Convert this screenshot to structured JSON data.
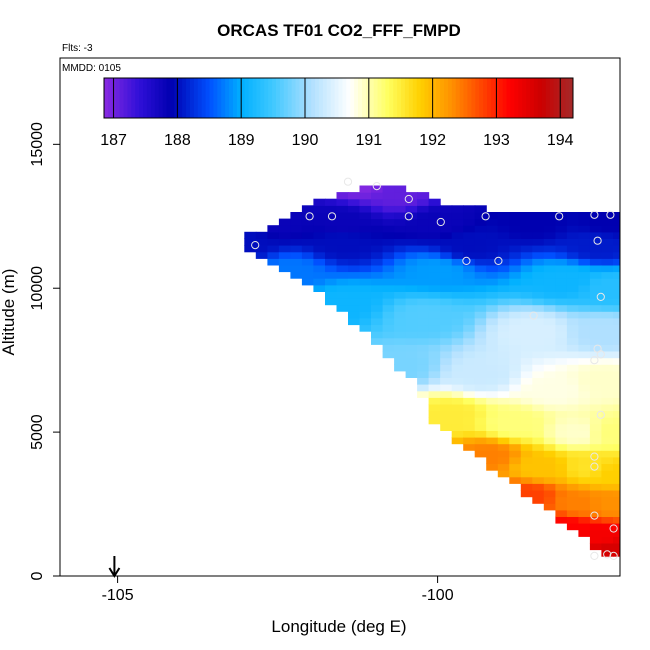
{
  "chart_data": {
    "type": "heatmap",
    "title": "ORCAS TF01 CO2_FFF_FMPD",
    "subtitle": "Flts: -3",
    "annotation": "MMDD: 0105",
    "xlabel": "Longitude (deg E)",
    "ylabel": "Altitude (m)",
    "xlim": [
      -105.9,
      -97.15
    ],
    "ylim": [
      0,
      18000
    ],
    "xticks": [
      {
        "value": -105,
        "label": "-105"
      },
      {
        "value": -100,
        "label": "-100"
      }
    ],
    "yticks": [
      {
        "value": 0,
        "label": "0"
      },
      {
        "value": 5000,
        "label": "5000"
      },
      {
        "value": 10000,
        "label": "10000"
      },
      {
        "value": 15000,
        "label": "15000"
      }
    ],
    "colorbar": {
      "min": 186.85,
      "max": 194.2,
      "ticks": [
        {
          "value": 187,
          "label": "187"
        },
        {
          "value": 188,
          "label": "188"
        },
        {
          "value": 189,
          "label": "189"
        },
        {
          "value": 190,
          "label": "190"
        },
        {
          "value": 191,
          "label": "191"
        },
        {
          "value": 192,
          "label": "192"
        },
        {
          "value": 193,
          "label": "193"
        },
        {
          "value": 194,
          "label": "194"
        }
      ],
      "stops": [
        {
          "value": 186.85,
          "color": "#8a2be2"
        },
        {
          "value": 187.4,
          "color": "#3010d8"
        },
        {
          "value": 187.9,
          "color": "#0000b0"
        },
        {
          "value": 188.5,
          "color": "#0050ff"
        },
        {
          "value": 189.0,
          "color": "#00b0ff"
        },
        {
          "value": 189.5,
          "color": "#40c8ff"
        },
        {
          "value": 190.1,
          "color": "#b0e0ff"
        },
        {
          "value": 190.7,
          "color": "#ffffff"
        },
        {
          "value": 191.3,
          "color": "#ffff60"
        },
        {
          "value": 191.8,
          "color": "#ffd000"
        },
        {
          "value": 192.3,
          "color": "#ff9000"
        },
        {
          "value": 192.8,
          "color": "#ff4000"
        },
        {
          "value": 193.2,
          "color": "#ff0000"
        },
        {
          "value": 193.7,
          "color": "#cc0000"
        },
        {
          "value": 194.2,
          "color": "#a52a2a"
        }
      ]
    },
    "flight_marker": {
      "longitude": -105.05,
      "symbol": "down-arrow"
    },
    "field_boundary": {
      "top_altitude": 12700,
      "columns": [
        {
          "lon": -103.0,
          "bottom": 11500,
          "top": 11900
        },
        {
          "lon": -102.7,
          "bottom": 10900,
          "top": 12100
        },
        {
          "lon": -102.2,
          "bottom": 10400,
          "top": 12600
        },
        {
          "lon": -101.6,
          "bottom": 9400,
          "top": 13300
        },
        {
          "lon": -101.0,
          "bottom": 8200,
          "top": 13600
        },
        {
          "lon": -100.4,
          "bottom": 6800,
          "top": 13400
        },
        {
          "lon": -100.0,
          "bottom": 5200,
          "top": 13000
        },
        {
          "lon": -99.5,
          "bottom": 4300,
          "top": 12800
        },
        {
          "lon": -99.0,
          "bottom": 3500,
          "top": 12700
        },
        {
          "lon": -98.5,
          "bottom": 2600,
          "top": 12700
        },
        {
          "lon": -98.0,
          "bottom": 1800,
          "top": 12700
        },
        {
          "lon": -97.5,
          "bottom": 900,
          "top": 12700
        },
        {
          "lon": -97.15,
          "bottom": 600,
          "top": 12700
        }
      ]
    },
    "field_anchors": [
      {
        "lon": -101.2,
        "alt": 13700,
        "v": 186.9
      },
      {
        "lon": -100.6,
        "alt": 13300,
        "v": 187.1
      },
      {
        "lon": -102.5,
        "alt": 12300,
        "v": 187.8
      },
      {
        "lon": -101.5,
        "alt": 12300,
        "v": 187.8
      },
      {
        "lon": -100.0,
        "alt": 12300,
        "v": 187.8
      },
      {
        "lon": -98.5,
        "alt": 12300,
        "v": 187.9
      },
      {
        "lon": -97.3,
        "alt": 12300,
        "v": 187.9
      },
      {
        "lon": -103.0,
        "alt": 11600,
        "v": 188.0
      },
      {
        "lon": -101.5,
        "alt": 11600,
        "v": 188.0
      },
      {
        "lon": -99.5,
        "alt": 11500,
        "v": 188.0
      },
      {
        "lon": -97.5,
        "alt": 11500,
        "v": 188.1
      },
      {
        "lon": -102.3,
        "alt": 10600,
        "v": 188.7
      },
      {
        "lon": -100.0,
        "alt": 10600,
        "v": 188.9
      },
      {
        "lon": -98.0,
        "alt": 10300,
        "v": 189.1
      },
      {
        "lon": -97.3,
        "alt": 10000,
        "v": 189.3
      },
      {
        "lon": -101.5,
        "alt": 9500,
        "v": 189.1
      },
      {
        "lon": -100.2,
        "alt": 9000,
        "v": 189.6
      },
      {
        "lon": -98.5,
        "alt": 8500,
        "v": 190.4
      },
      {
        "lon": -97.4,
        "alt": 8500,
        "v": 190.1
      },
      {
        "lon": -100.6,
        "alt": 7300,
        "v": 189.8
      },
      {
        "lon": -99.3,
        "alt": 7000,
        "v": 190.3
      },
      {
        "lon": -98.2,
        "alt": 6500,
        "v": 190.8
      },
      {
        "lon": -97.4,
        "alt": 6800,
        "v": 190.9
      },
      {
        "lon": -99.8,
        "alt": 5600,
        "v": 191.5
      },
      {
        "lon": -98.8,
        "alt": 5300,
        "v": 191.2
      },
      {
        "lon": -97.8,
        "alt": 5000,
        "v": 190.9
      },
      {
        "lon": -97.3,
        "alt": 5000,
        "v": 191.2
      },
      {
        "lon": -99.2,
        "alt": 4200,
        "v": 192.4
      },
      {
        "lon": -98.4,
        "alt": 3800,
        "v": 191.9
      },
      {
        "lon": -97.6,
        "alt": 3800,
        "v": 191.6
      },
      {
        "lon": -97.3,
        "alt": 3600,
        "v": 191.8
      },
      {
        "lon": -98.6,
        "alt": 2800,
        "v": 192.8
      },
      {
        "lon": -97.8,
        "alt": 2500,
        "v": 192.4
      },
      {
        "lon": -97.3,
        "alt": 2500,
        "v": 192.3
      },
      {
        "lon": -98.0,
        "alt": 1700,
        "v": 193.2
      },
      {
        "lon": -97.5,
        "alt": 1400,
        "v": 193.3
      },
      {
        "lon": -97.3,
        "alt": 900,
        "v": 193.6
      }
    ],
    "observations": [
      {
        "lon": -101.4,
        "alt": 13700
      },
      {
        "lon": -100.95,
        "alt": 13550
      },
      {
        "lon": -100.45,
        "alt": 13100
      },
      {
        "lon": -102.0,
        "alt": 12500
      },
      {
        "lon": -101.65,
        "alt": 12500
      },
      {
        "lon": -100.45,
        "alt": 12500
      },
      {
        "lon": -99.95,
        "alt": 12300
      },
      {
        "lon": -99.25,
        "alt": 12500
      },
      {
        "lon": -98.1,
        "alt": 12500
      },
      {
        "lon": -97.55,
        "alt": 12550
      },
      {
        "lon": -97.3,
        "alt": 12550
      },
      {
        "lon": -102.85,
        "alt": 11500
      },
      {
        "lon": -97.5,
        "alt": 11650
      },
      {
        "lon": -99.55,
        "alt": 10950
      },
      {
        "lon": -99.05,
        "alt": 10950
      },
      {
        "lon": -97.45,
        "alt": 9700
      },
      {
        "lon": -98.5,
        "alt": 9050
      },
      {
        "lon": -97.5,
        "alt": 7900
      },
      {
        "lon": -97.45,
        "alt": 7700
      },
      {
        "lon": -97.55,
        "alt": 7500
      },
      {
        "lon": -97.45,
        "alt": 5600
      },
      {
        "lon": -97.55,
        "alt": 4150
      },
      {
        "lon": -97.55,
        "alt": 3800
      },
      {
        "lon": -97.55,
        "alt": 2100
      },
      {
        "lon": -97.25,
        "alt": 1650
      },
      {
        "lon": -97.55,
        "alt": 700
      },
      {
        "lon": -97.35,
        "alt": 750
      },
      {
        "lon": -97.25,
        "alt": 700
      }
    ]
  }
}
